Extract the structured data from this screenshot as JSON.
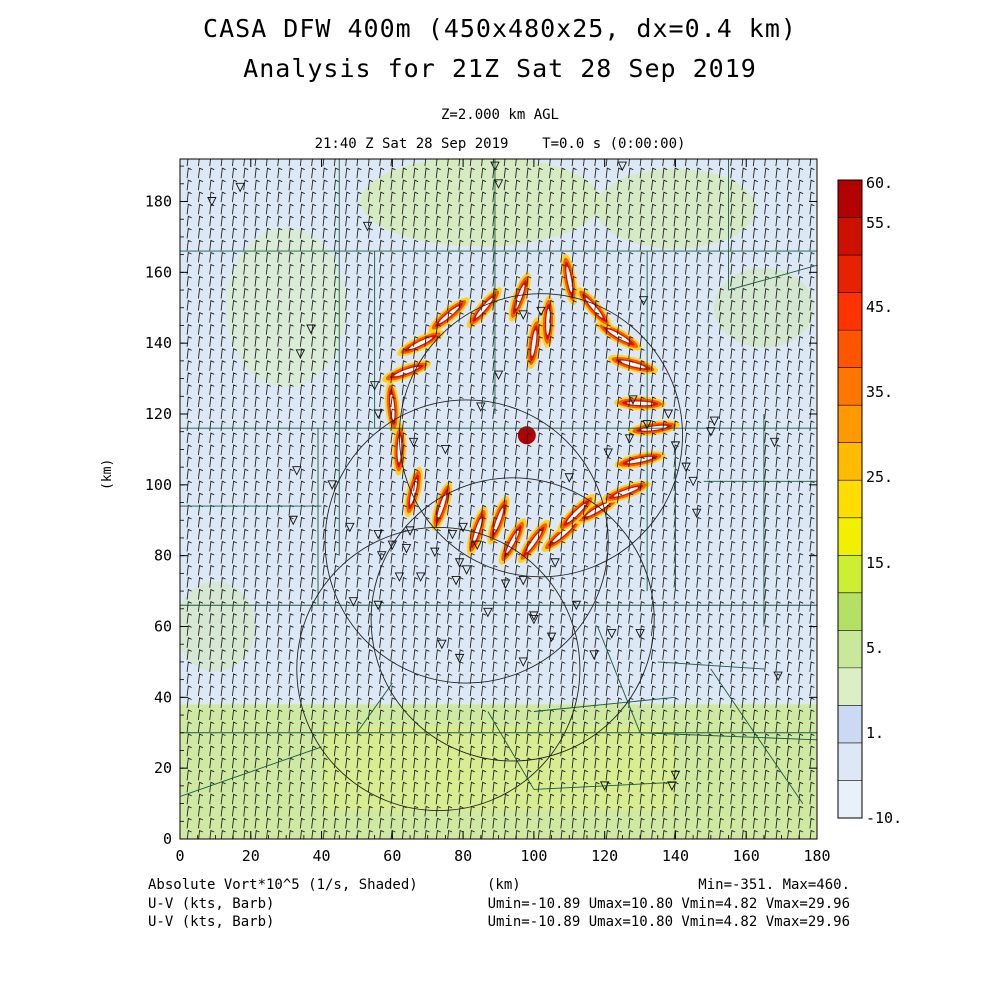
{
  "header": {
    "title_line1": "CASA DFW 400m (450x480x25, dx=0.4 km)",
    "title_line2": "Analysis for 21Z Sat 28 Sep 2019",
    "level": "Z=2.000 km AGL",
    "time": "21:40 Z Sat 28 Sep 2019    T=0.0 s (0:00:00)"
  },
  "axes": {
    "x_label": "(km)",
    "y_label": "(km)",
    "x_ticks": [
      "0",
      "20",
      "40",
      "60",
      "80",
      "100",
      "120",
      "140",
      "160",
      "180"
    ],
    "y_ticks": [
      "0",
      "20",
      "40",
      "60",
      "80",
      "100",
      "120",
      "140",
      "160",
      "180"
    ],
    "x_range": [
      0,
      180
    ],
    "y_range": [
      0,
      192
    ]
  },
  "colorbar": {
    "labels": [
      "60.",
      "55.",
      "45.",
      "35.",
      "25.",
      "15.",
      "5.",
      "1.",
      "-10."
    ],
    "colors": [
      "#b30000",
      "#cc1100",
      "#e62200",
      "#ff3300",
      "#ff5500",
      "#ff7700",
      "#ff9900",
      "#ffbb00",
      "#ffdd00",
      "#f0f000",
      "#ccee33",
      "#b4e066",
      "#c8e89a",
      "#dcefc4",
      "#ccd9f2",
      "#dde7f5",
      "#e8f1f9"
    ]
  },
  "footer": {
    "field_label": "Absolute Vort*10^5 (1/s, Shaded)",
    "x_unit": "(km)",
    "minmax": "Min=-351. Max=460.",
    "barb1_label": "U-V (kts, Barb)",
    "barb1_stats": "Umin=-10.89 Umax=10.80 Vmin=4.82 Vmax=29.96",
    "barb2_label": "U-V (kts, Barb)",
    "barb2_stats": "Umin=-10.89 Umax=10.80 Vmin=4.82 Vmax=29.96"
  },
  "map": {
    "radar_ranges_km": [
      {
        "cx": 102,
        "cy": 114,
        "r": 40
      },
      {
        "cx": 81,
        "cy": 84,
        "r": 40
      },
      {
        "cx": 73,
        "cy": 48,
        "r": 40
      },
      {
        "cx": 94,
        "cy": 62,
        "r": 40
      }
    ],
    "station_markers": [
      [
        17,
        184
      ],
      [
        9,
        180
      ],
      [
        53,
        173
      ],
      [
        89,
        190
      ],
      [
        90,
        185
      ],
      [
        125,
        190
      ],
      [
        37,
        144
      ],
      [
        34,
        137
      ],
      [
        33,
        104
      ],
      [
        43,
        100
      ],
      [
        32,
        90
      ],
      [
        48,
        88
      ],
      [
        56,
        86
      ],
      [
        60,
        83
      ],
      [
        65,
        87
      ],
      [
        62,
        74
      ],
      [
        57,
        80
      ],
      [
        64,
        82
      ],
      [
        72,
        81
      ],
      [
        80,
        88
      ],
      [
        77,
        86
      ],
      [
        78,
        73
      ],
      [
        68,
        74
      ],
      [
        81,
        76
      ],
      [
        74,
        55
      ],
      [
        87,
        64
      ],
      [
        97,
        73
      ],
      [
        100,
        63
      ],
      [
        105,
        57
      ],
      [
        117,
        52
      ],
      [
        122,
        58
      ],
      [
        130,
        58
      ],
      [
        120,
        15
      ],
      [
        140,
        18
      ],
      [
        139,
        15
      ],
      [
        145,
        101
      ],
      [
        143,
        105
      ],
      [
        146,
        92
      ],
      [
        150,
        115
      ],
      [
        151,
        118
      ],
      [
        138,
        120
      ],
      [
        132,
        117
      ],
      [
        127,
        113
      ],
      [
        140,
        111
      ],
      [
        169,
        46
      ],
      [
        168,
        112
      ],
      [
        55,
        128
      ],
      [
        56,
        120
      ],
      [
        66,
        112
      ],
      [
        75,
        110
      ],
      [
        85,
        122
      ],
      [
        90,
        131
      ],
      [
        110,
        102
      ],
      [
        121,
        109
      ],
      [
        97,
        148
      ],
      [
        102,
        149
      ],
      [
        131,
        152
      ],
      [
        128,
        124
      ],
      [
        79,
        78
      ],
      [
        56,
        66
      ],
      [
        49,
        67
      ],
      [
        100,
        62
      ],
      [
        92,
        72
      ],
      [
        106,
        78
      ],
      [
        112,
        66
      ],
      [
        84,
        83
      ],
      [
        79,
        51
      ],
      [
        97,
        50
      ]
    ],
    "vorticity_lobes": [
      [
        60,
        122,
        95
      ],
      [
        62,
        110,
        88
      ],
      [
        66,
        98,
        76
      ],
      [
        74,
        94,
        72
      ],
      [
        84,
        87,
        72
      ],
      [
        94,
        84,
        62
      ],
      [
        100,
        84,
        55
      ],
      [
        108,
        86,
        40
      ],
      [
        118,
        93,
        30
      ],
      [
        126,
        98,
        20
      ],
      [
        130,
        107,
        12
      ],
      [
        134,
        116,
        8
      ],
      [
        130,
        123,
        358
      ],
      [
        128,
        134,
        345
      ],
      [
        124,
        142,
        330
      ],
      [
        117,
        150,
        310
      ],
      [
        110,
        158,
        280
      ],
      [
        104,
        146,
        268
      ],
      [
        96,
        153,
        250
      ],
      [
        86,
        150,
        230
      ],
      [
        76,
        148,
        220
      ],
      [
        68,
        140,
        206
      ],
      [
        64,
        132,
        200
      ],
      [
        90,
        90,
        70
      ],
      [
        112,
        92,
        45
      ],
      [
        100,
        140,
        262
      ]
    ],
    "county_lines": [
      [
        [
          0,
          166
        ],
        [
          180,
          166
        ]
      ],
      [
        [
          0,
          116
        ],
        [
          180,
          116
        ]
      ],
      [
        [
          0,
          30
        ],
        [
          180,
          30
        ]
      ],
      [
        [
          45,
          192
        ],
        [
          45,
          80
        ]
      ],
      [
        [
          89,
          192
        ],
        [
          89,
          120
        ]
      ],
      [
        [
          55,
          166
        ],
        [
          55,
          116
        ]
      ],
      [
        [
          39,
          116
        ],
        [
          39,
          66
        ]
      ],
      [
        [
          0,
          66
        ],
        [
          180,
          66
        ]
      ],
      [
        [
          140,
          110
        ],
        [
          140,
          70
        ]
      ],
      [
        [
          132,
          166
        ],
        [
          132,
          70
        ]
      ],
      [
        [
          155,
          192
        ],
        [
          155,
          155
        ]
      ],
      [
        [
          155,
          155
        ],
        [
          180,
          162
        ]
      ],
      [
        [
          148,
          101
        ],
        [
          180,
          101
        ]
      ],
      [
        [
          0,
          94
        ],
        [
          40,
          94
        ]
      ],
      [
        [
          165,
          120
        ],
        [
          165,
          60
        ]
      ],
      [
        [
          135,
          50
        ],
        [
          165,
          48
        ]
      ],
      [
        [
          60,
          44
        ],
        [
          50,
          30
        ]
      ],
      [
        [
          87,
          36
        ],
        [
          100,
          14
        ]
      ],
      [
        [
          100,
          14
        ],
        [
          140,
          16
        ]
      ],
      [
        [
          118,
          60
        ],
        [
          130,
          30
        ]
      ],
      [
        [
          130,
          30
        ],
        [
          180,
          28
        ]
      ],
      [
        [
          0,
          12
        ],
        [
          40,
          26
        ]
      ],
      [
        [
          100,
          36
        ],
        [
          140,
          40
        ]
      ],
      [
        [
          150,
          48
        ],
        [
          176,
          10
        ]
      ]
    ]
  }
}
